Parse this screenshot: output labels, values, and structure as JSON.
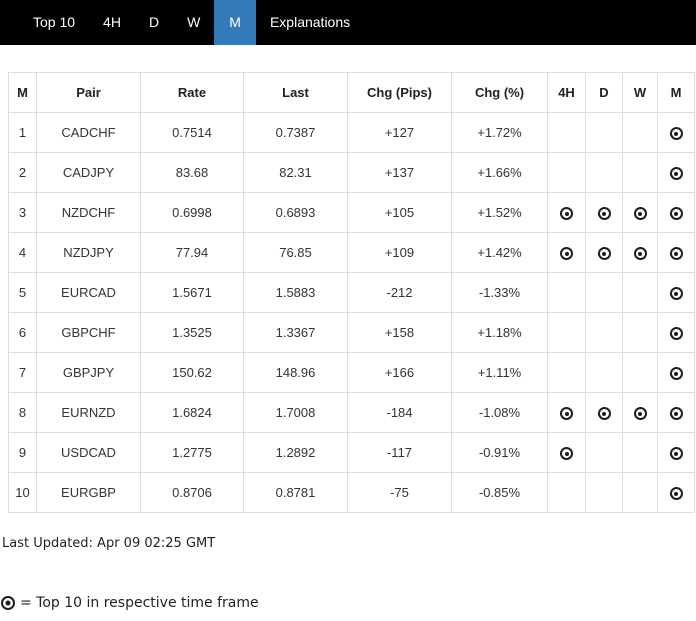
{
  "colors": {
    "nav_bg": "#000000",
    "active_tab_bg": "#337ab7",
    "border": "#dddddd",
    "text": "#333333"
  },
  "nav": {
    "tabs": [
      {
        "label": "Top 10",
        "active": false
      },
      {
        "label": "4H",
        "active": false
      },
      {
        "label": "D",
        "active": false
      },
      {
        "label": "W",
        "active": false
      },
      {
        "label": "M",
        "active": true
      },
      {
        "label": "Explanations",
        "active": false
      }
    ]
  },
  "table": {
    "columns": [
      "M",
      "Pair",
      "Rate",
      "Last",
      "Chg (Pips)",
      "Chg (%)",
      "4H",
      "D",
      "W",
      "M"
    ],
    "rows": [
      {
        "rank": "1",
        "pair": "CADCHF",
        "rate": "0.7514",
        "last": "0.7387",
        "chg_pips": "+127",
        "chg_pct": "+1.72%",
        "h4": false,
        "d": false,
        "w": false,
        "m": true
      },
      {
        "rank": "2",
        "pair": "CADJPY",
        "rate": "83.68",
        "last": "82.31",
        "chg_pips": "+137",
        "chg_pct": "+1.66%",
        "h4": false,
        "d": false,
        "w": false,
        "m": true
      },
      {
        "rank": "3",
        "pair": "NZDCHF",
        "rate": "0.6998",
        "last": "0.6893",
        "chg_pips": "+105",
        "chg_pct": "+1.52%",
        "h4": true,
        "d": true,
        "w": true,
        "m": true
      },
      {
        "rank": "4",
        "pair": "NZDJPY",
        "rate": "77.94",
        "last": "76.85",
        "chg_pips": "+109",
        "chg_pct": "+1.42%",
        "h4": true,
        "d": true,
        "w": true,
        "m": true
      },
      {
        "rank": "5",
        "pair": "EURCAD",
        "rate": "1.5671",
        "last": "1.5883",
        "chg_pips": "-212",
        "chg_pct": "-1.33%",
        "h4": false,
        "d": false,
        "w": false,
        "m": true
      },
      {
        "rank": "6",
        "pair": "GBPCHF",
        "rate": "1.3525",
        "last": "1.3367",
        "chg_pips": "+158",
        "chg_pct": "+1.18%",
        "h4": false,
        "d": false,
        "w": false,
        "m": true
      },
      {
        "rank": "7",
        "pair": "GBPJPY",
        "rate": "150.62",
        "last": "148.96",
        "chg_pips": "+166",
        "chg_pct": "+1.11%",
        "h4": false,
        "d": false,
        "w": false,
        "m": true
      },
      {
        "rank": "8",
        "pair": "EURNZD",
        "rate": "1.6824",
        "last": "1.7008",
        "chg_pips": "-184",
        "chg_pct": "-1.08%",
        "h4": true,
        "d": true,
        "w": true,
        "m": true
      },
      {
        "rank": "9",
        "pair": "USDCAD",
        "rate": "1.2775",
        "last": "1.2892",
        "chg_pips": "-117",
        "chg_pct": "-0.91%",
        "h4": true,
        "d": false,
        "w": false,
        "m": true
      },
      {
        "rank": "10",
        "pair": "EURGBP",
        "rate": "0.8706",
        "last": "0.8781",
        "chg_pips": "-75",
        "chg_pct": "-0.85%",
        "h4": false,
        "d": false,
        "w": false,
        "m": true
      }
    ]
  },
  "footer": {
    "last_updated": "Last Updated: Apr 09 02:25 GMT",
    "legend_text": "= Top 10 in respective time frame"
  }
}
